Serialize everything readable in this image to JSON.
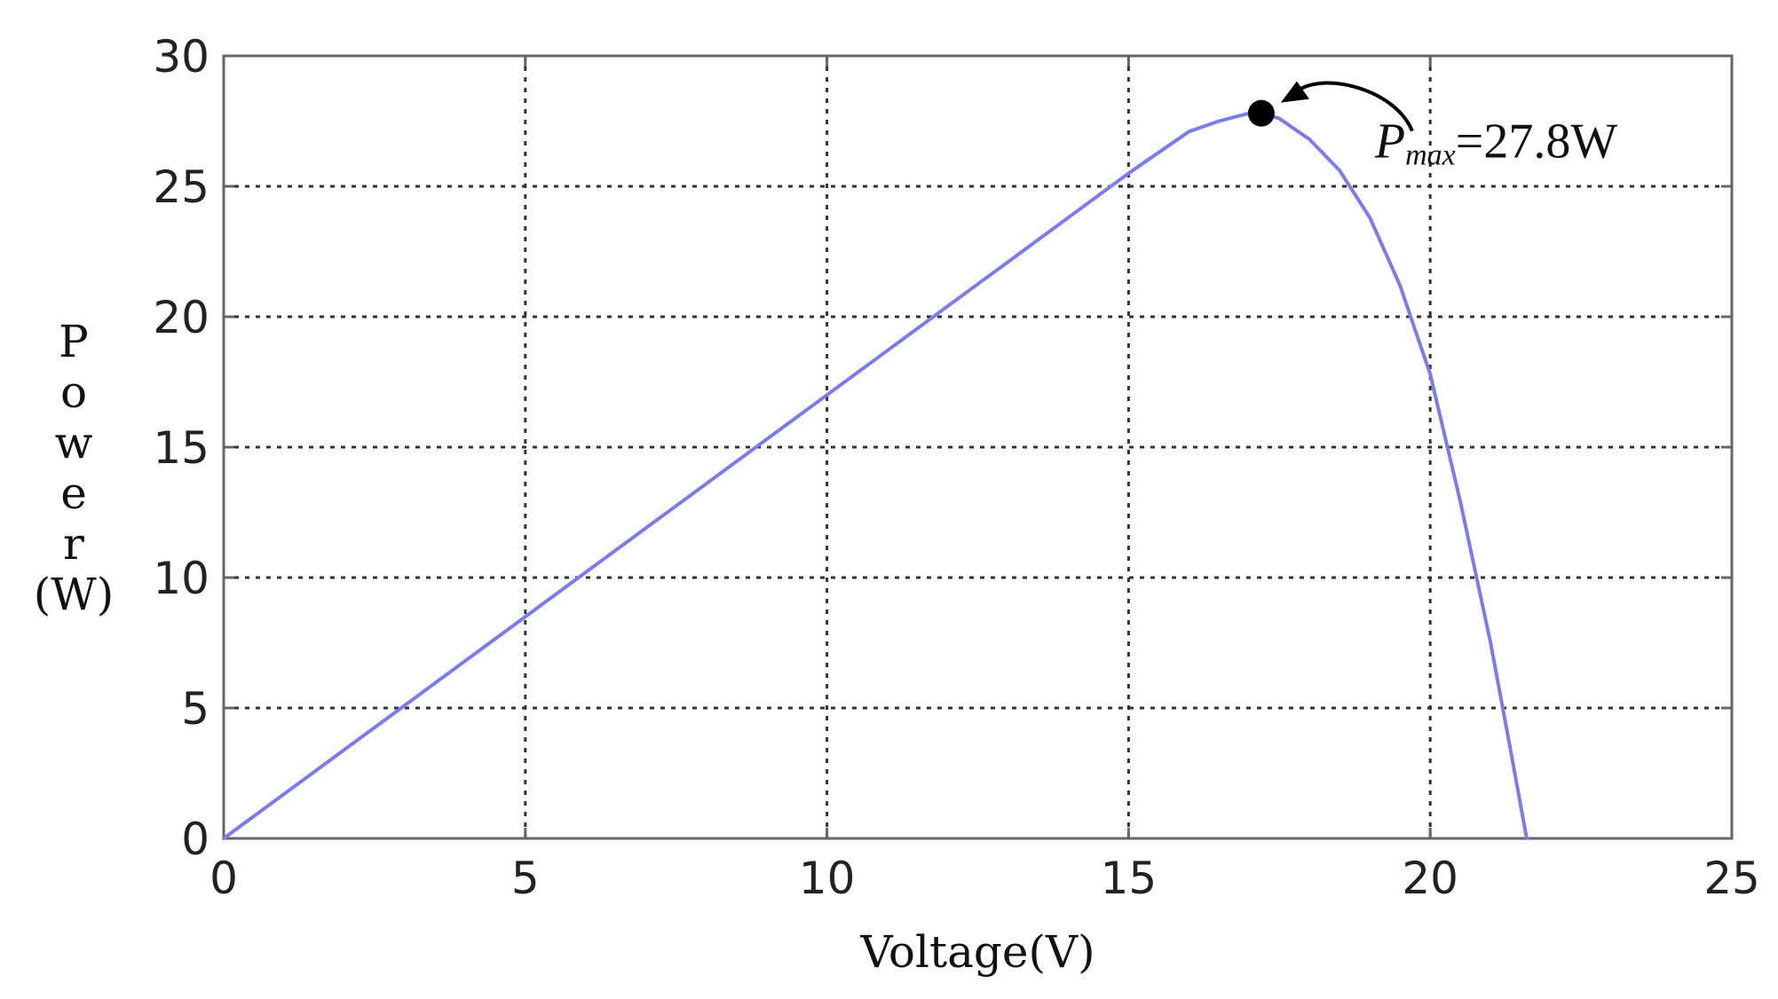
{
  "chart_data": {
    "type": "line",
    "xlabel": "Voltage(V)",
    "ylabel": "Power (W)",
    "ylabel_lines": [
      "P",
      "o",
      "w",
      "e",
      "r",
      "(W)"
    ],
    "xlim": [
      0,
      25
    ],
    "ylim": [
      0,
      30
    ],
    "x_ticks": [
      0,
      5,
      10,
      15,
      20,
      25
    ],
    "y_ticks": [
      0,
      5,
      10,
      15,
      20,
      25,
      30
    ],
    "x_tick_labels": [
      "0",
      "5",
      "10",
      "15",
      "20",
      "25"
    ],
    "y_tick_labels": [
      "0",
      "5",
      "10",
      "15",
      "20",
      "25",
      "30"
    ],
    "grid": true,
    "line_color": "#7b7bea",
    "series": [
      {
        "x": [
          0,
          1,
          2,
          3,
          4,
          5,
          6,
          7,
          8,
          9,
          10,
          11,
          12,
          13,
          14,
          15,
          15.5,
          16,
          16.5,
          17,
          17.2,
          17.5,
          18,
          18.5,
          19,
          19.5,
          20,
          20.5,
          21,
          21.3,
          21.6
        ],
        "y": [
          0,
          1.7,
          3.4,
          5.1,
          6.8,
          8.5,
          10.2,
          11.9,
          13.6,
          15.3,
          17.0,
          18.7,
          20.4,
          22.1,
          23.8,
          25.5,
          26.3,
          27.1,
          27.5,
          27.8,
          27.8,
          27.6,
          26.8,
          25.6,
          23.8,
          21.2,
          17.8,
          12.9,
          7.5,
          3.8,
          0
        ]
      }
    ],
    "annotations": [
      {
        "label_main": "P",
        "label_sub": "max",
        "label_value": "=27.8W",
        "point": [
          17.2,
          27.8
        ],
        "color": "#000000"
      }
    ]
  }
}
